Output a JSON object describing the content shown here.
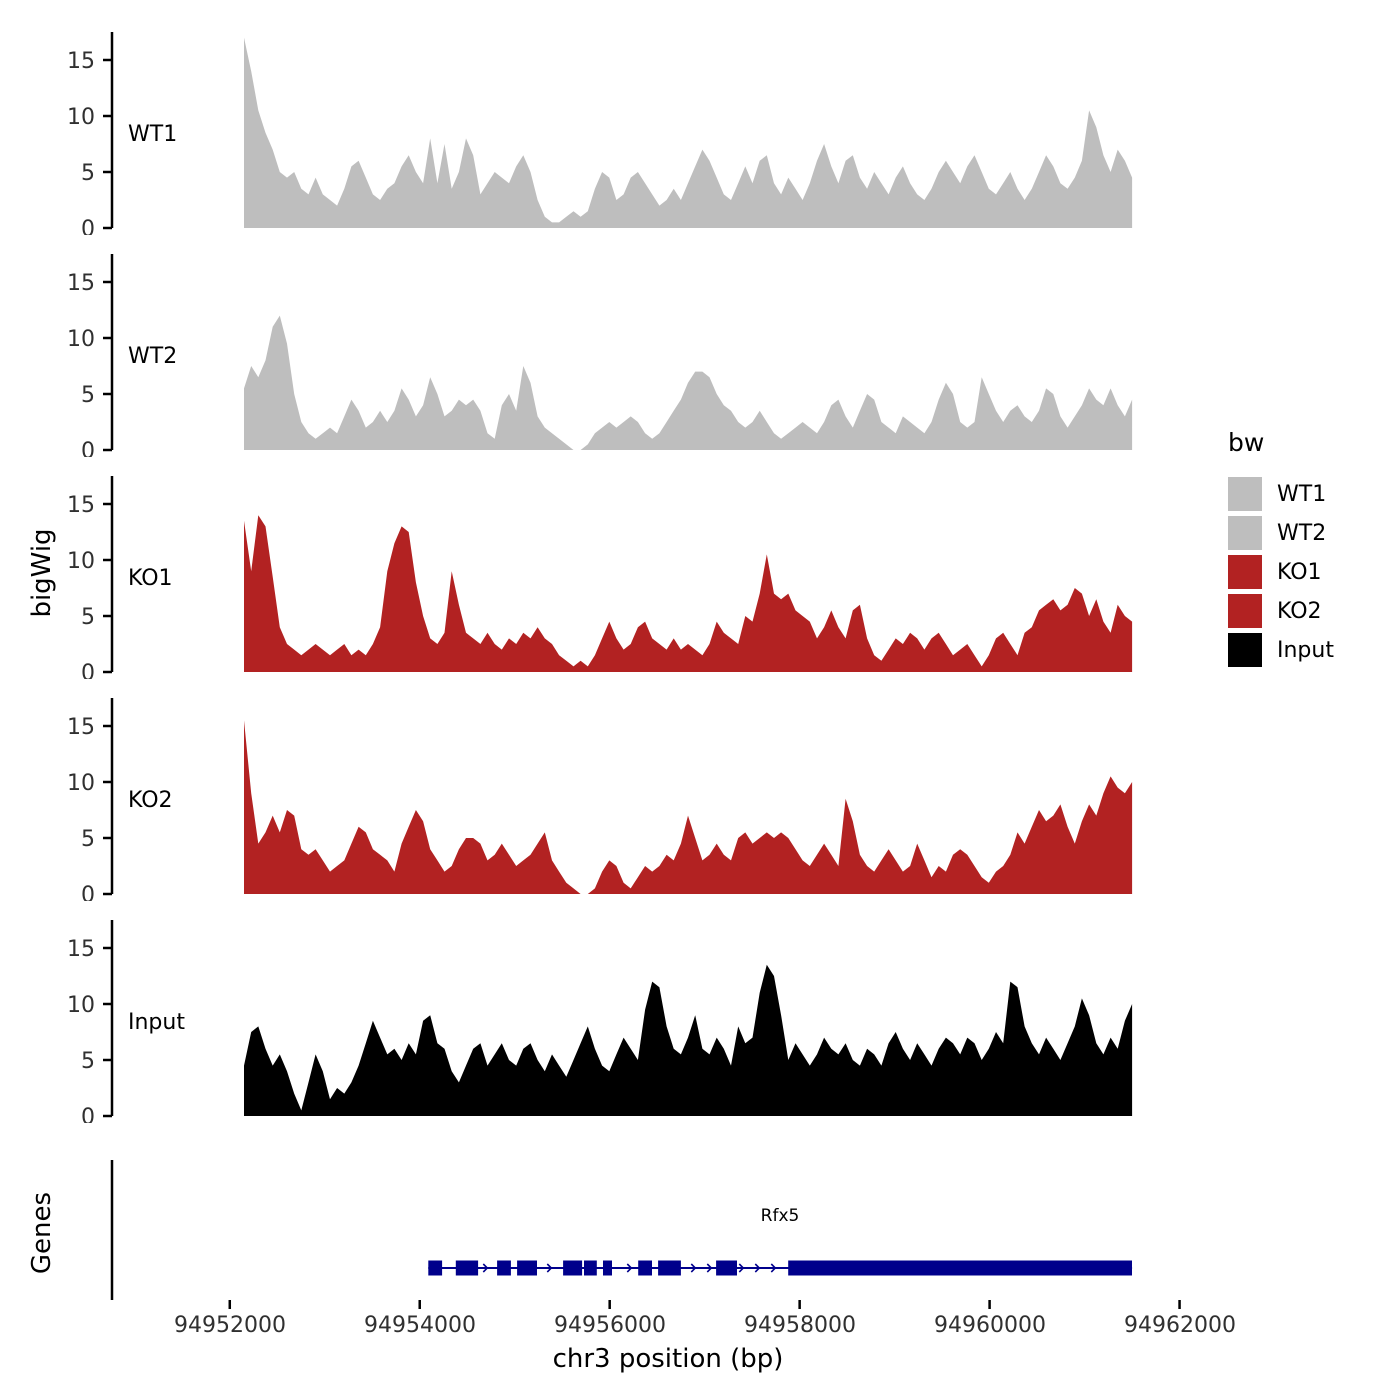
{
  "figure": {
    "y_axis_title": "bigWig",
    "genes_axis_title": "Genes",
    "x_axis_title": "chr3 position (bp)"
  },
  "legend": {
    "title": "bw",
    "items": [
      {
        "label": "WT1",
        "color": "#BEBEBE"
      },
      {
        "label": "WT2",
        "color": "#BEBEBE"
      },
      {
        "label": "KO1",
        "color": "#B22222"
      },
      {
        "label": "KO2",
        "color": "#B22222"
      },
      {
        "label": "Input",
        "color": "#000000"
      }
    ]
  },
  "chart_data": {
    "type": "area",
    "title": "",
    "xlabel": "chr3 position (bp)",
    "ylabel": "bigWig",
    "grid": false,
    "legend_position": "right",
    "x_domain": [
      94950760,
      94962110
    ],
    "x_start": 94952150,
    "x_end": 94961500,
    "x_ticks": [
      94952000,
      94954000,
      94956000,
      94958000,
      94960000,
      94962000
    ],
    "x_tick_labels": [
      "94952000",
      "94954000",
      "94956000",
      "94958000",
      "94960000",
      "94962000"
    ],
    "y_ticks": [
      0,
      5,
      10,
      15
    ],
    "y_tick_labels": [
      "0",
      "5",
      "10",
      "15"
    ],
    "y_max": 17.2,
    "series": [
      {
        "name": "WT1",
        "color": "#BEBEBE",
        "values": [
          17,
          14,
          10.5,
          8.5,
          7,
          5,
          4.5,
          5,
          3.5,
          3,
          4.5,
          3,
          2.5,
          2,
          3.5,
          5.5,
          6,
          4.5,
          3,
          2.5,
          3.5,
          4,
          5.5,
          6.5,
          5,
          4,
          8,
          4,
          7.5,
          3.5,
          5,
          8,
          6.5,
          3,
          4,
          5,
          4.5,
          4,
          5.5,
          6.5,
          5,
          2.5,
          1,
          0.5,
          0.5,
          1,
          1.5,
          1,
          1.5,
          3.5,
          5,
          4.5,
          2.5,
          3,
          4.5,
          5,
          4,
          3,
          2,
          2.5,
          3.5,
          2.5,
          4,
          5.5,
          7,
          6,
          4.5,
          3,
          2.5,
          4,
          5.5,
          4,
          6,
          6.5,
          4,
          3,
          4.5,
          3.5,
          2.5,
          4,
          6,
          7.5,
          5.5,
          4,
          6,
          6.5,
          4.5,
          3.5,
          5,
          4,
          3,
          4.5,
          5.5,
          4,
          3,
          2.5,
          3.5,
          5,
          6,
          5,
          4,
          5.5,
          6.5,
          5,
          3.5,
          3,
          4,
          5,
          3.5,
          2.5,
          3.5,
          5,
          6.5,
          5.5,
          4,
          3.5,
          4.5,
          6,
          10.5,
          9,
          6.5,
          5,
          7,
          6,
          4.5
        ]
      },
      {
        "name": "WT2",
        "color": "#BEBEBE",
        "values": [
          5.5,
          7.5,
          6.5,
          8,
          11,
          12,
          9.5,
          5,
          2.5,
          1.5,
          1,
          1.5,
          2,
          1.5,
          3,
          4.5,
          3.5,
          2,
          2.5,
          3.5,
          2.5,
          3.5,
          5.5,
          4.5,
          3,
          4,
          6.5,
          5,
          3,
          3.5,
          4.5,
          4,
          4.5,
          3.5,
          1.5,
          1,
          4,
          5,
          3.5,
          7.5,
          6,
          3,
          2,
          1.5,
          1,
          0.5,
          0,
          0,
          0.5,
          1.5,
          2,
          2.5,
          2,
          2.5,
          3,
          2.5,
          1.5,
          1,
          1.5,
          2.5,
          3.5,
          4.5,
          6,
          7,
          7,
          6.5,
          5,
          4,
          3.5,
          2.5,
          2,
          2.5,
          3.5,
          2.5,
          1.5,
          1,
          1.5,
          2,
          2.5,
          2,
          1.5,
          2.5,
          4,
          4.5,
          3,
          2,
          3.5,
          5,
          4.5,
          2.5,
          2,
          1.5,
          3,
          2.5,
          2,
          1.5,
          2.5,
          4.5,
          6,
          5,
          2.5,
          2,
          2.5,
          6.5,
          5,
          3.5,
          2.5,
          3.5,
          4,
          3,
          2.5,
          3.5,
          5.5,
          5,
          3,
          2,
          3,
          4,
          5.5,
          4.5,
          4,
          5.5,
          4,
          3,
          4.5
        ]
      },
      {
        "name": "KO1",
        "color": "#B22222",
        "values": [
          13.5,
          9,
          14,
          13,
          8.5,
          4,
          2.5,
          2,
          1.5,
          2,
          2.5,
          2,
          1.5,
          2,
          2.5,
          1.5,
          2,
          1.5,
          2.5,
          4,
          9,
          11.5,
          13,
          12.5,
          8,
          5,
          3,
          2.5,
          3.5,
          9,
          6,
          3.5,
          3,
          2.5,
          3.5,
          2.5,
          2,
          3,
          2.5,
          3.5,
          3,
          4,
          3,
          2.5,
          1.5,
          1,
          0.5,
          1,
          0.5,
          1.5,
          3,
          4.5,
          3,
          2,
          2.5,
          4,
          4.5,
          3,
          2.5,
          2,
          3,
          2,
          2.5,
          2,
          1.5,
          2.5,
          4.5,
          3.5,
          3,
          2.5,
          5,
          4.5,
          7,
          10.5,
          7,
          6.5,
          7,
          5.5,
          5,
          4.5,
          3,
          4,
          5.5,
          4,
          3,
          5.5,
          6,
          3,
          1.5,
          1,
          2,
          3,
          2.5,
          3.5,
          3,
          2,
          3,
          3.5,
          2.5,
          1.5,
          2,
          2.5,
          1.5,
          0.5,
          1.5,
          3,
          3.5,
          2.5,
          1.5,
          3.5,
          4,
          5.5,
          6,
          6.5,
          5.5,
          6,
          7.5,
          7,
          5,
          6.5,
          4.5,
          3.5,
          6,
          5,
          4.5
        ]
      },
      {
        "name": "KO2",
        "color": "#B22222",
        "values": [
          15.5,
          9,
          4.5,
          5.5,
          7,
          5.5,
          7.5,
          7,
          4,
          3.5,
          4,
          3,
          2,
          2.5,
          3,
          4.5,
          6,
          5.5,
          4,
          3.5,
          3,
          2,
          4.5,
          6,
          7.5,
          6.5,
          4,
          3,
          2,
          2.5,
          4,
          5,
          5,
          4.5,
          3,
          3.5,
          4.5,
          3.5,
          2.5,
          3,
          3.5,
          4.5,
          5.5,
          3,
          2,
          1,
          0.5,
          0,
          0,
          0.5,
          2,
          3,
          2.5,
          1,
          0.5,
          1.5,
          2.5,
          2,
          2.5,
          3.5,
          3,
          4.5,
          7,
          5,
          3,
          3.5,
          4.5,
          3.5,
          3,
          5,
          5.5,
          4.5,
          5,
          5.5,
          5,
          5.5,
          5,
          4,
          3,
          2.5,
          3.5,
          4.5,
          3.5,
          2.5,
          8.5,
          6.5,
          3.5,
          2.5,
          2,
          3,
          4,
          3,
          2,
          2.5,
          4.5,
          3,
          1.5,
          2.5,
          2,
          3.5,
          4,
          3.5,
          2.5,
          1.5,
          1,
          2,
          2.5,
          3.5,
          5.5,
          4.5,
          6,
          7.5,
          6.5,
          7,
          8,
          6,
          4.5,
          6.5,
          8,
          7,
          9,
          10.5,
          9.5,
          9,
          10
        ]
      },
      {
        "name": "Input",
        "color": "#000000",
        "values": [
          4.5,
          7.5,
          8,
          6,
          4.5,
          5.5,
          4,
          2,
          0.5,
          3,
          5.5,
          4,
          1.5,
          2.5,
          2,
          3,
          4.5,
          6.5,
          8.5,
          7,
          5.5,
          6,
          5,
          6.5,
          5.5,
          8.5,
          9,
          6.5,
          6,
          4,
          3,
          4.5,
          6,
          6.5,
          4.5,
          5.5,
          6.5,
          5,
          4.5,
          6,
          6.5,
          5,
          4,
          5.5,
          4.5,
          3.5,
          5,
          6.5,
          8,
          6,
          4.5,
          4,
          5.5,
          7,
          6,
          5,
          9.5,
          12,
          11.5,
          8,
          6,
          5.5,
          7,
          9,
          6,
          5.5,
          7,
          6,
          4.5,
          8,
          6.5,
          7,
          11,
          13.5,
          12.5,
          9,
          5,
          6.5,
          5.5,
          4.5,
          5.5,
          7,
          6,
          5.5,
          6.5,
          5,
          4.5,
          6,
          5.5,
          4.5,
          6.5,
          7.5,
          6,
          5,
          6.5,
          5.5,
          4.5,
          6,
          7,
          6.5,
          5.5,
          7,
          6.5,
          5,
          6,
          7.5,
          6.5,
          12,
          11.5,
          8,
          6.5,
          5.5,
          7,
          6,
          5,
          6.5,
          8,
          10.5,
          9,
          6.5,
          5.5,
          7,
          6,
          8.5,
          10
        ]
      }
    ],
    "genes": {
      "label": "Rfx5",
      "color": "#00008B",
      "start": 94954090,
      "end": 94961500,
      "strand": "+",
      "exons": [
        [
          94954090,
          94954235
        ],
        [
          94954380,
          94954615
        ],
        [
          94954815,
          94954960
        ],
        [
          94955025,
          94955235
        ],
        [
          94955510,
          94955710
        ],
        [
          94955730,
          94955865
        ],
        [
          94955930,
          94956025
        ],
        [
          94956300,
          94956445
        ],
        [
          94956510,
          94956750
        ],
        [
          94957120,
          94957340
        ],
        [
          94957880,
          94961500
        ]
      ]
    }
  }
}
